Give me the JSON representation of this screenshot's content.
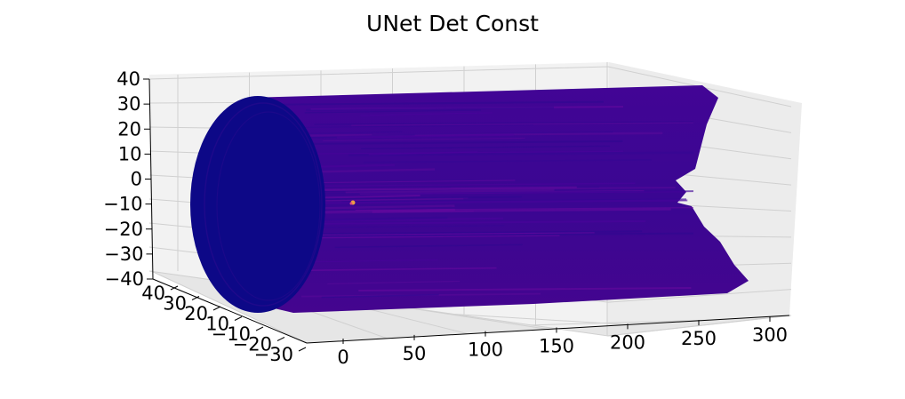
{
  "chart_data": {
    "type": "surface-3d",
    "title": "UNet Det Const",
    "xlabel": "",
    "ylabel": "",
    "zlabel": "",
    "x_ticks": [
      "0",
      "50",
      "100",
      "150",
      "200",
      "250",
      "300"
    ],
    "y_ticks": [
      "40",
      "30",
      "20",
      "10",
      "−10",
      "−20",
      "−30"
    ],
    "z_ticks": [
      "40",
      "30",
      "20",
      "10",
      "0",
      "−10",
      "−20",
      "−30",
      "−40"
    ],
    "xlim": [
      0,
      320
    ],
    "ylim": [
      -35,
      45
    ],
    "zlim": [
      -42,
      42
    ],
    "colormap": "plasma",
    "surface_color": "#3f0594",
    "cap_color": "#0d0887",
    "pane_color": "#f2f2f2",
    "grid": true
  }
}
